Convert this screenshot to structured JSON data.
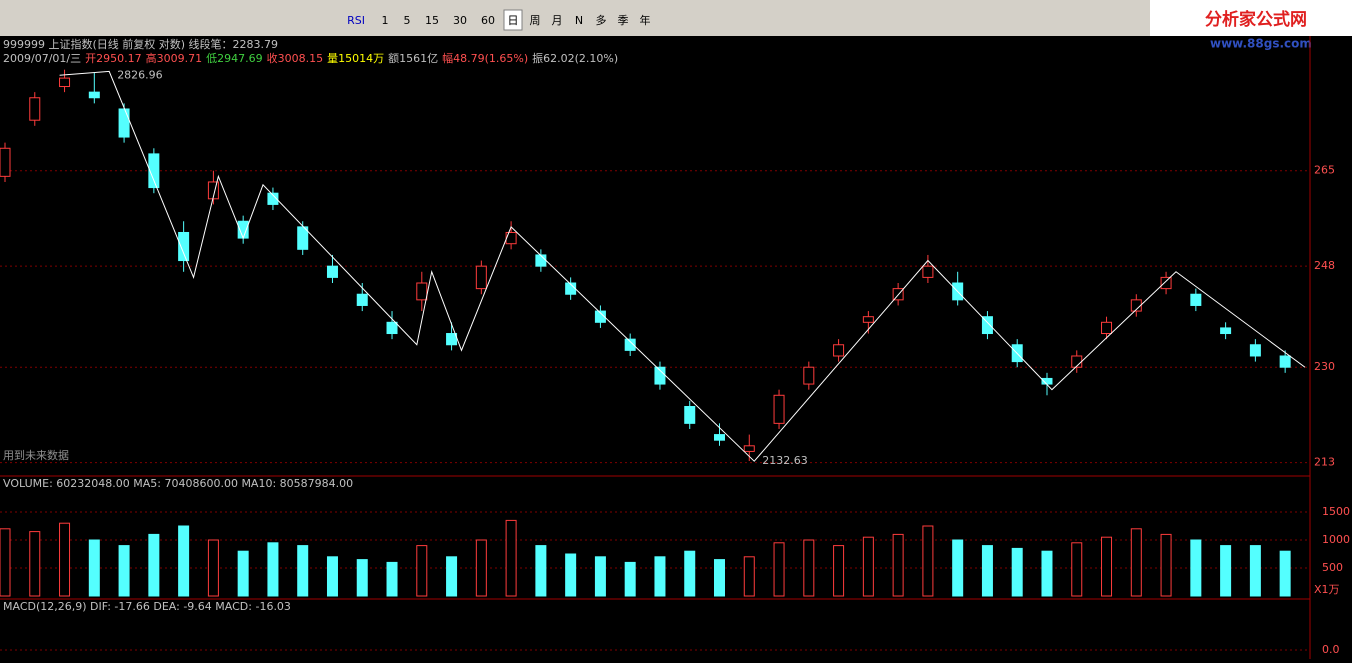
{
  "toolbar": {
    "buttons": [
      "RSI",
      "1",
      "5",
      "15",
      "30",
      "60",
      "日",
      "周",
      "月",
      "N",
      "多",
      "季",
      "年"
    ]
  },
  "logo": {
    "title": "分析家公式网",
    "url": "www.88gs.com"
  },
  "header": {
    "line1": "999999 上证指数(日线 前复权 对数) 线段笔：2283.79",
    "line2": [
      {
        "text": "2009/07/01/三",
        "color": "#c0c0c0"
      },
      {
        "text": "开2950.17",
        "color": "#ff5050"
      },
      {
        "text": "高3009.71",
        "color": "#ff5050"
      },
      {
        "text": "低2947.69",
        "color": "#40d040"
      },
      {
        "text": "收3008.15",
        "color": "#ff5050"
      },
      {
        "text": "量15014万",
        "color": "#ffff00"
      },
      {
        "text": "额1561亿",
        "color": "#c0c0c0"
      },
      {
        "text": "幅48.79(1.65%)",
        "color": "#ff5050"
      },
      {
        "text": "振62.02(2.10%)",
        "color": "#c0c0c0"
      }
    ]
  },
  "note": "用到未来数据",
  "price": {
    "xlim": [
      0,
      262
    ],
    "ylim": [
      2108,
      2890
    ],
    "yticks": [
      {
        "value": 2650,
        "label": "265"
      },
      {
        "value": 2480,
        "label": "248"
      },
      {
        "value": 2300,
        "label": "230"
      },
      {
        "value": 2130,
        "label": "213"
      }
    ],
    "up_color": "#ff3c3c",
    "down_color": "#54ffff",
    "candles": [
      {
        "x": 0,
        "ohlc": [
          2640,
          2700,
          2630,
          2690
        ]
      },
      {
        "x": 6,
        "ohlc": [
          2740,
          2790,
          2730,
          2780
        ]
      },
      {
        "x": 12,
        "ohlc": [
          2800,
          2830,
          2790,
          2815
        ]
      },
      {
        "x": 18,
        "ohlc": [
          2790,
          2825,
          2770,
          2780
        ]
      },
      {
        "x": 24,
        "ohlc": [
          2760,
          2770,
          2700,
          2710
        ]
      },
      {
        "x": 30,
        "ohlc": [
          2680,
          2690,
          2610,
          2620
        ]
      },
      {
        "x": 36,
        "ohlc": [
          2540,
          2560,
          2470,
          2490
        ]
      },
      {
        "x": 42,
        "ohlc": [
          2600,
          2650,
          2590,
          2630
        ]
      },
      {
        "x": 48,
        "ohlc": [
          2560,
          2570,
          2520,
          2530
        ]
      },
      {
        "x": 54,
        "ohlc": [
          2610,
          2620,
          2580,
          2590
        ]
      },
      {
        "x": 60,
        "ohlc": [
          2550,
          2560,
          2500,
          2510
        ]
      },
      {
        "x": 66,
        "ohlc": [
          2480,
          2500,
          2450,
          2460
        ]
      },
      {
        "x": 72,
        "ohlc": [
          2430,
          2450,
          2400,
          2410
        ]
      },
      {
        "x": 78,
        "ohlc": [
          2380,
          2400,
          2350,
          2360
        ]
      },
      {
        "x": 84,
        "ohlc": [
          2420,
          2470,
          2400,
          2450
        ]
      },
      {
        "x": 90,
        "ohlc": [
          2360,
          2380,
          2330,
          2340
        ]
      },
      {
        "x": 96,
        "ohlc": [
          2440,
          2490,
          2430,
          2480
        ]
      },
      {
        "x": 102,
        "ohlc": [
          2520,
          2560,
          2510,
          2540
        ]
      },
      {
        "x": 108,
        "ohlc": [
          2500,
          2510,
          2470,
          2480
        ]
      },
      {
        "x": 114,
        "ohlc": [
          2450,
          2460,
          2420,
          2430
        ]
      },
      {
        "x": 120,
        "ohlc": [
          2400,
          2410,
          2370,
          2380
        ]
      },
      {
        "x": 126,
        "ohlc": [
          2350,
          2360,
          2320,
          2330
        ]
      },
      {
        "x": 132,
        "ohlc": [
          2300,
          2310,
          2260,
          2270
        ]
      },
      {
        "x": 138,
        "ohlc": [
          2230,
          2240,
          2190,
          2200
        ]
      },
      {
        "x": 144,
        "ohlc": [
          2180,
          2200,
          2160,
          2170
        ]
      },
      {
        "x": 150,
        "ohlc": [
          2150,
          2180,
          2133,
          2160
        ]
      },
      {
        "x": 156,
        "ohlc": [
          2200,
          2260,
          2190,
          2250
        ]
      },
      {
        "x": 162,
        "ohlc": [
          2270,
          2310,
          2260,
          2300
        ]
      },
      {
        "x": 168,
        "ohlc": [
          2320,
          2350,
          2310,
          2340
        ]
      },
      {
        "x": 174,
        "ohlc": [
          2380,
          2400,
          2360,
          2390
        ]
      },
      {
        "x": 180,
        "ohlc": [
          2420,
          2450,
          2410,
          2440
        ]
      },
      {
        "x": 186,
        "ohlc": [
          2460,
          2500,
          2450,
          2480
        ]
      },
      {
        "x": 192,
        "ohlc": [
          2450,
          2470,
          2410,
          2420
        ]
      },
      {
        "x": 198,
        "ohlc": [
          2390,
          2400,
          2350,
          2360
        ]
      },
      {
        "x": 204,
        "ohlc": [
          2340,
          2350,
          2300,
          2310
        ]
      },
      {
        "x": 210,
        "ohlc": [
          2280,
          2290,
          2250,
          2270
        ]
      },
      {
        "x": 216,
        "ohlc": [
          2300,
          2330,
          2290,
          2320
        ]
      },
      {
        "x": 222,
        "ohlc": [
          2360,
          2390,
          2350,
          2380
        ]
      },
      {
        "x": 228,
        "ohlc": [
          2400,
          2430,
          2390,
          2420
        ]
      },
      {
        "x": 234,
        "ohlc": [
          2440,
          2470,
          2430,
          2460
        ]
      },
      {
        "x": 240,
        "ohlc": [
          2430,
          2440,
          2400,
          2410
        ]
      },
      {
        "x": 246,
        "ohlc": [
          2370,
          2380,
          2350,
          2360
        ]
      },
      {
        "x": 252,
        "ohlc": [
          2340,
          2350,
          2310,
          2320
        ]
      },
      {
        "x": 258,
        "ohlc": [
          2320,
          2330,
          2290,
          2300
        ]
      }
    ],
    "zigzag": {
      "x": [
        11,
        21,
        38,
        43,
        48,
        52,
        83,
        86,
        92,
        102,
        151,
        186,
        211,
        236,
        262
      ],
      "values": [
        2820,
        2826.96,
        2460,
        2640,
        2530,
        2625,
        2340,
        2470,
        2330,
        2550,
        2132.63,
        2490,
        2260,
        2470,
        2300
      ],
      "value_labels": {
        "1": "2826.96",
        "10": "2132.63"
      }
    }
  },
  "volume": {
    "title": "VOLUME: 60232048.00 MA5: 70408600.00 MA10: 80587984.00",
    "unit": "X1万",
    "ylim": [
      0,
      2000
    ],
    "yticks": [
      1500,
      1000,
      500
    ],
    "values": [
      1200,
      1150,
      1300,
      1000,
      900,
      1100,
      1250,
      1000,
      800,
      950,
      900,
      700,
      650,
      600,
      900,
      700,
      1000,
      1350,
      900,
      750,
      700,
      600,
      700,
      800,
      650,
      700,
      950,
      1000,
      900,
      1050,
      1100,
      1250,
      1000,
      900,
      850,
      800,
      950,
      1050,
      1200,
      1100,
      1000,
      900,
      900,
      800
    ]
  },
  "macd": {
    "title": "MACD(12,26,9) DIF: -17.66 DEA: -9.64 MACD: -16.03",
    "yticks": [
      {
        "value": 0,
        "label": "0.0"
      }
    ]
  }
}
